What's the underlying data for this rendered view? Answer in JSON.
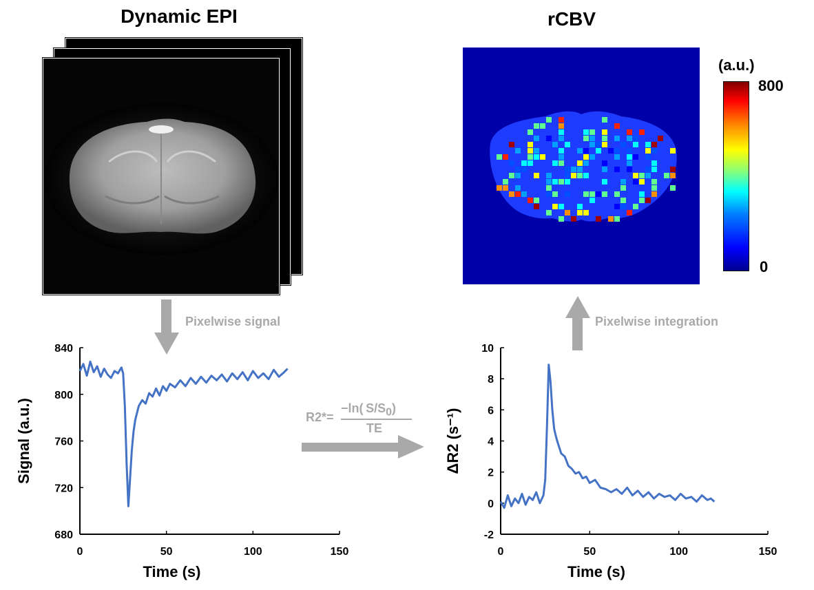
{
  "figure": {
    "left_title": "Dynamic EPI",
    "right_title": "rCBV",
    "arrow_down_label": "Pixelwise signal",
    "arrow_up_label": "Pixelwise integration",
    "formula": {
      "lhs": "R2*=",
      "numerator": "−ln( S/S",
      "subscript": "0",
      "numerator_close": ")",
      "denominator": "TE"
    },
    "colorbar": {
      "unit": "(a.u.)",
      "max_label": "800",
      "min_label": "0"
    },
    "colors": {
      "line": "#4472c4",
      "annotation": "#a9a9a9",
      "map_bg": "#0000a8"
    }
  },
  "chart_data": [
    {
      "type": "line",
      "title": "",
      "xlabel": "Time (s)",
      "ylabel": "Signal (a.u.)",
      "xlim": [
        0,
        150
      ],
      "ylim": [
        680,
        840
      ],
      "xticks": [
        "0",
        "50",
        "100",
        "150"
      ],
      "yticks": [
        "680",
        "720",
        "760",
        "800",
        "840"
      ],
      "series": [
        {
          "name": "signal",
          "x": [
            0,
            2,
            4,
            6,
            8,
            10,
            12,
            14,
            16,
            18,
            20,
            22,
            24,
            25,
            26,
            27,
            28,
            29,
            30,
            31,
            32,
            33,
            34,
            36,
            38,
            40,
            42,
            44,
            46,
            48,
            50,
            52,
            55,
            58,
            61,
            64,
            67,
            70,
            73,
            76,
            79,
            82,
            85,
            88,
            91,
            94,
            97,
            100,
            103,
            106,
            109,
            112,
            115,
            118,
            120
          ],
          "y": [
            820,
            826,
            816,
            828,
            819,
            824,
            815,
            822,
            817,
            814,
            820,
            818,
            823,
            818,
            790,
            740,
            704,
            728,
            752,
            768,
            778,
            784,
            790,
            795,
            792,
            801,
            798,
            805,
            799,
            807,
            803,
            809,
            806,
            812,
            807,
            814,
            809,
            815,
            810,
            816,
            812,
            817,
            811,
            818,
            813,
            819,
            812,
            820,
            814,
            818,
            813,
            821,
            815,
            819,
            822
          ]
        }
      ]
    },
    {
      "type": "line",
      "title": "",
      "xlabel": "Time (s)",
      "ylabel": "ΔR2 (s⁻¹)",
      "xlim": [
        0,
        150
      ],
      "ylim": [
        -2,
        10
      ],
      "xticks": [
        "0",
        "50",
        "100",
        "150"
      ],
      "yticks": [
        "-2",
        "0",
        "2",
        "4",
        "6",
        "8",
        "10"
      ],
      "series": [
        {
          "name": "deltaR2",
          "x": [
            0,
            2,
            4,
            6,
            8,
            10,
            12,
            14,
            16,
            18,
            20,
            22,
            24,
            25,
            26,
            27,
            28,
            29,
            30,
            31,
            32,
            34,
            36,
            38,
            40,
            42,
            44,
            46,
            48,
            50,
            53,
            56,
            59,
            62,
            65,
            68,
            71,
            74,
            77,
            80,
            83,
            86,
            89,
            92,
            95,
            98,
            101,
            104,
            107,
            110,
            113,
            116,
            118,
            120
          ],
          "y": [
            0.1,
            -0.3,
            0.5,
            -0.2,
            0.3,
            0.0,
            0.6,
            -0.1,
            0.4,
            0.2,
            0.7,
            0.0,
            0.5,
            1.5,
            5.0,
            8.9,
            7.8,
            6.0,
            4.8,
            4.3,
            3.9,
            3.2,
            3.0,
            2.4,
            2.2,
            1.9,
            2.0,
            1.6,
            1.7,
            1.3,
            1.5,
            1.0,
            0.9,
            0.7,
            0.9,
            0.6,
            1.0,
            0.5,
            0.8,
            0.4,
            0.7,
            0.3,
            0.6,
            0.4,
            0.5,
            0.2,
            0.6,
            0.3,
            0.4,
            0.1,
            0.5,
            0.2,
            0.3,
            0.1
          ]
        }
      ]
    }
  ]
}
